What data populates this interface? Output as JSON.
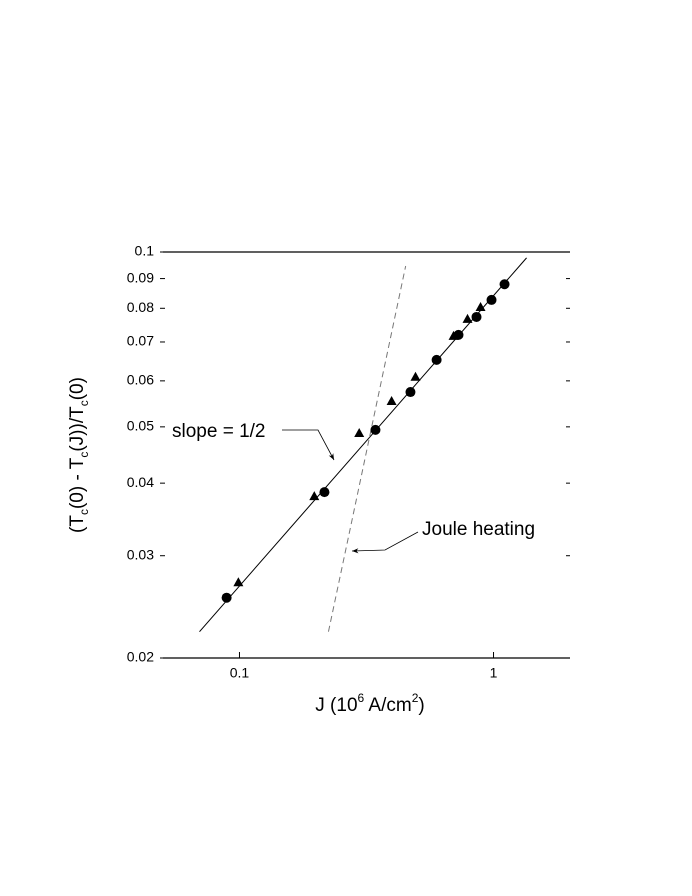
{
  "chart_data": {
    "type": "scatter",
    "x_label": [
      {
        "text": "J (10"
      },
      {
        "text": "6",
        "sup": true
      },
      {
        "text": " A/cm"
      },
      {
        "text": "2",
        "sup": true
      },
      {
        "text": ")"
      }
    ],
    "y_label": [
      {
        "text": "(T"
      },
      {
        "text": "c",
        "sub": true
      },
      {
        "text": "(0) - T"
      },
      {
        "text": "c",
        "sub": true
      },
      {
        "text": "(J))/T"
      },
      {
        "text": "c",
        "sub": true
      },
      {
        "text": "(0)"
      }
    ],
    "xlim": [
      0.05,
      2
    ],
    "ylim": [
      0.02,
      0.1
    ],
    "xscale": "log",
    "yscale": "log",
    "xticks": [
      0.1,
      1
    ],
    "yticks": [
      0.02,
      0.03,
      0.04,
      0.05,
      0.06,
      0.07,
      0.08,
      0.09,
      0.1
    ],
    "series": [
      {
        "marker": "circle",
        "color": "#000",
        "x": [
          0.089,
          0.216,
          0.343,
          0.471,
          0.597,
          0.728,
          0.857,
          0.982,
          1.105
        ],
        "values": [
          0.0254,
          0.0386,
          0.0494,
          0.0574,
          0.0652,
          0.072,
          0.0773,
          0.0827,
          0.088
        ]
      },
      {
        "marker": "triangle",
        "color": "#000",
        "x": [
          0.099,
          0.197,
          0.296,
          0.397,
          0.493,
          0.696,
          0.79,
          0.889
        ],
        "values": [
          0.027,
          0.038,
          0.0488,
          0.0554,
          0.061,
          0.0717,
          0.0767,
          0.0804
        ]
      }
    ],
    "lines": [
      {
        "style": "solid",
        "color": "#000",
        "x": [
          0.0696,
          1.349
        ],
        "values": [
          0.0222,
          0.0977
        ]
      },
      {
        "style": "dashed",
        "color": "#777",
        "x": [
          0.224,
          0.451
        ],
        "values": [
          0.0222,
          0.0946
        ]
      }
    ],
    "annotations": [
      "slope = 1/2",
      "Joule heating"
    ]
  }
}
